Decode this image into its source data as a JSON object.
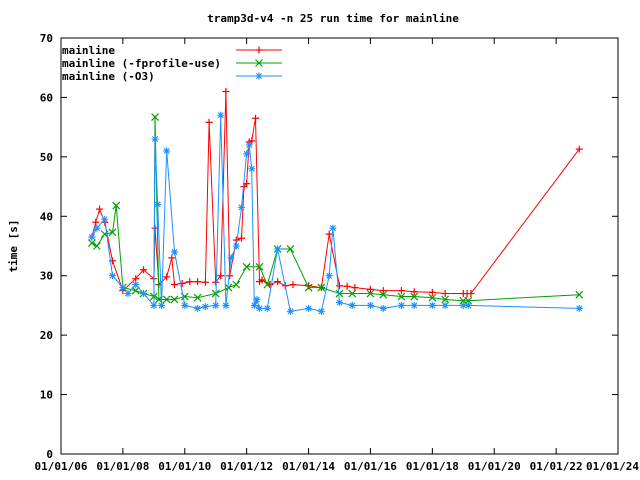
{
  "chart_data": {
    "type": "line",
    "title": "tramp3d-v4 -n 25 run time for mainline",
    "xlabel": "",
    "ylabel": "time [s]",
    "ylim": [
      0,
      70
    ],
    "yticks": [
      0,
      10,
      20,
      30,
      40,
      50,
      60,
      70
    ],
    "xlim": [
      "2006-01-01",
      "2024-01-01"
    ],
    "xticks": [
      "01/01/06",
      "01/01/08",
      "01/01/10",
      "01/01/12",
      "01/01/14",
      "01/01/16",
      "01/01/18",
      "01/01/20",
      "01/01/22",
      "01/01/24"
    ],
    "grid": false,
    "legend_position": "top-left",
    "series": [
      {
        "name": "mainline",
        "color": "#ff0000",
        "marker": "plus",
        "x": [
          "2007-01-01",
          "2007-02-15",
          "2007-04-01",
          "2007-06-01",
          "2007-09-01",
          "2008-01-01",
          "2008-06-01",
          "2008-09-01",
          "2009-01-01",
          "2009-01-15",
          "2009-03-01",
          "2009-06-01",
          "2009-08-01",
          "2009-09-01",
          "2009-12-01",
          "2010-03-01",
          "2010-06-01",
          "2010-09-01",
          "2010-10-15",
          "2011-01-01",
          "2011-03-01",
          "2011-05-01",
          "2011-06-15",
          "2011-09-01",
          "2011-11-01",
          "2011-12-01",
          "2012-01-01",
          "2012-02-01",
          "2012-03-01",
          "2012-04-15",
          "2012-06-01",
          "2012-07-01",
          "2012-10-01",
          "2013-01-01",
          "2013-04-01",
          "2013-07-01",
          "2014-01-01",
          "2014-06-01",
          "2014-09-01",
          "2015-01-01",
          "2015-04-01",
          "2015-07-01",
          "2016-01-01",
          "2016-06-01",
          "2017-01-01",
          "2017-06-01",
          "2018-01-01",
          "2018-06-01",
          "2019-01-01",
          "2019-02-15",
          "2019-04-01",
          "2022-10-01"
        ],
        "values": [
          36.5,
          39.0,
          41.2,
          39.0,
          32.5,
          27.5,
          29.5,
          31.0,
          29.5,
          38.0,
          28.5,
          29.8,
          33.0,
          28.5,
          28.7,
          29.0,
          29.0,
          28.9,
          55.8,
          28.9,
          30.0,
          61.0,
          30.0,
          36.0,
          36.3,
          45.0,
          45.5,
          52.5,
          52.7,
          56.5,
          29.0,
          29.3,
          28.5,
          29.0,
          28.3,
          28.5,
          28.3,
          28.0,
          37.0,
          28.3,
          28.2,
          28.0,
          27.7,
          27.5,
          27.5,
          27.3,
          27.2,
          27.0,
          27.0,
          27.0,
          27.0,
          51.3
        ]
      },
      {
        "name": "mainline (-fprofile-use)",
        "color": "#00a000",
        "marker": "cross",
        "x": [
          "2007-01-01",
          "2007-03-01",
          "2007-06-01",
          "2007-09-01",
          "2007-10-15",
          "2008-01-01",
          "2008-06-01",
          "2008-09-01",
          "2009-01-01",
          "2009-01-15",
          "2009-03-01",
          "2009-06-01",
          "2009-09-01",
          "2010-01-01",
          "2010-06-01",
          "2011-01-01",
          "2011-06-01",
          "2011-09-01",
          "2012-01-01",
          "2012-06-01",
          "2012-09-01",
          "2013-01-01",
          "2013-06-01",
          "2014-01-01",
          "2014-06-01",
          "2015-01-01",
          "2015-06-01",
          "2016-01-01",
          "2016-06-01",
          "2017-01-01",
          "2017-06-01",
          "2018-01-01",
          "2018-06-01",
          "2019-01-01",
          "2019-03-01",
          "2022-10-01"
        ],
        "values": [
          35.5,
          35.0,
          37.0,
          37.3,
          41.8,
          28.0,
          27.5,
          27.0,
          26.5,
          56.7,
          26.0,
          26.0,
          26.0,
          26.5,
          26.3,
          27.0,
          28.0,
          28.5,
          31.5,
          31.5,
          28.5,
          34.5,
          34.5,
          28.0,
          28.0,
          27.0,
          27.0,
          27.0,
          26.8,
          26.5,
          26.5,
          26.3,
          26.0,
          25.8,
          25.8,
          26.8
        ]
      },
      {
        "name": "mainline (-O3)",
        "color": "#1e90ff",
        "marker": "star",
        "x": [
          "2007-01-01",
          "2007-03-01",
          "2007-06-01",
          "2007-09-01",
          "2008-01-01",
          "2008-03-01",
          "2008-06-01",
          "2008-09-01",
          "2009-01-01",
          "2009-01-15",
          "2009-02-15",
          "2009-04-01",
          "2009-06-01",
          "2009-09-01",
          "2010-01-01",
          "2010-06-01",
          "2010-09-01",
          "2011-01-01",
          "2011-03-01",
          "2011-05-01",
          "2011-07-01",
          "2011-09-01",
          "2011-11-01",
          "2012-01-01",
          "2012-02-01",
          "2012-03-01",
          "2012-04-01",
          "2012-05-01",
          "2012-06-01",
          "2012-09-01",
          "2013-01-01",
          "2013-06-01",
          "2014-01-01",
          "2014-06-01",
          "2014-09-01",
          "2014-10-15",
          "2015-01-01",
          "2015-06-01",
          "2016-01-01",
          "2016-06-01",
          "2017-01-01",
          "2017-06-01",
          "2018-01-01",
          "2018-06-01",
          "2019-01-01",
          "2019-03-01",
          "2022-10-01"
        ],
        "values": [
          36.5,
          38.0,
          39.5,
          30.0,
          28.0,
          27.0,
          28.5,
          27.0,
          25.0,
          53.0,
          42.0,
          25.0,
          51.0,
          34.0,
          25.0,
          24.5,
          24.8,
          25.0,
          57.0,
          25.0,
          33.0,
          35.0,
          41.5,
          50.5,
          52.0,
          48.0,
          25.0,
          26.0,
          24.5,
          24.5,
          34.5,
          24.0,
          24.5,
          24.0,
          30.0,
          38.0,
          25.5,
          25.0,
          25.0,
          24.5,
          25.0,
          25.0,
          25.0,
          25.0,
          25.0,
          25.0,
          24.5
        ]
      }
    ]
  }
}
